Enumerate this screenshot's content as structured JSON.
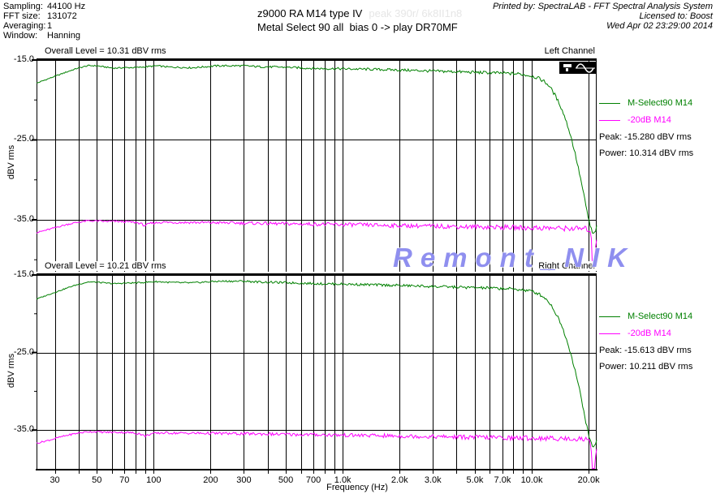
{
  "header": {
    "params": [
      {
        "label": "Sampling:",
        "value": "44100 Hz"
      },
      {
        "label": "FFT size:",
        "value": "131072"
      },
      {
        "label": "Averaging:",
        "value": "1"
      },
      {
        "label": "Window:",
        "value": "Hanning"
      }
    ],
    "title_line1": "z9000 RA M14 type IV",
    "title_ghost": "peak 390r/ 6k8II1n8",
    "title_line2": "Metal Select 90 all  bias 0 -> play DR70MF",
    "printed_by": "Printed by: SpectraLAB - FFT Spectral Analysis System",
    "licensed_to": "Licensed to: Boost",
    "printed_date": "Wed Apr 02 23:29:00 2014"
  },
  "watermark": {
    "text": "Remont_NIK",
    "color": "#8f8fef"
  },
  "colors": {
    "green": "#008000",
    "magenta": "#ff00ff",
    "grid": "#000000"
  },
  "axis": {
    "xlabel": "Frequency (Hz)",
    "scale": "log",
    "grid_freqs": [
      30,
      40,
      50,
      60,
      70,
      80,
      90,
      100,
      200,
      300,
      400,
      500,
      600,
      700,
      800,
      900,
      1000,
      2000,
      3000,
      4000,
      5000,
      6000,
      7000,
      8000,
      9000,
      10000,
      20000
    ],
    "xticks": [
      [
        30,
        "30"
      ],
      [
        50,
        "50"
      ],
      [
        70,
        "70"
      ],
      [
        100,
        "100"
      ],
      [
        200,
        "200"
      ],
      [
        300,
        "300"
      ],
      [
        500,
        "500"
      ],
      [
        700,
        "700"
      ],
      [
        1000,
        "1.0k"
      ],
      [
        2000,
        "2.0k"
      ],
      [
        3000,
        "3.0k"
      ],
      [
        5000,
        "5.0k"
      ],
      [
        7000,
        "7.0k"
      ],
      [
        10000,
        "10.0k"
      ],
      [
        20000,
        "20.0k"
      ]
    ]
  },
  "chart_data": [
    {
      "type": "line",
      "channel": "Left Channel",
      "overall_level": "Overall Level = 10.31 dBV rms",
      "ylabel": "dBV rms",
      "xscale": "log",
      "xlim": [
        24,
        22050
      ],
      "ylim": [
        -41.5,
        -15
      ],
      "yticks": [
        {
          "v": -15,
          "label": "-15.0"
        },
        {
          "v": -25,
          "label": "-25.0"
        },
        {
          "v": -35,
          "label": "-35.0"
        }
      ],
      "yticks_minor": [
        -20,
        -30,
        -40
      ],
      "hgrid": [
        -25,
        -35
      ],
      "peak": "Peak: -15.280 dBV rms",
      "power": "Power: 10.314 dBV rms",
      "series": [
        {
          "name": "M-Select90 M14",
          "color": "#008000",
          "noise": 0.18,
          "points": [
            [
              24,
              -17.9
            ],
            [
              28,
              -17.3
            ],
            [
              32,
              -16.8
            ],
            [
              36,
              -16.35
            ],
            [
              40,
              -16.0
            ],
            [
              45,
              -15.7
            ],
            [
              50,
              -15.72
            ],
            [
              56,
              -15.9
            ],
            [
              62,
              -16.02
            ],
            [
              70,
              -15.95
            ],
            [
              80,
              -15.95
            ],
            [
              90,
              -15.85
            ],
            [
              104,
              -15.72
            ],
            [
              120,
              -15.88
            ],
            [
              140,
              -15.92
            ],
            [
              160,
              -15.97
            ],
            [
              185,
              -15.85
            ],
            [
              215,
              -15.73
            ],
            [
              250,
              -15.72
            ],
            [
              300,
              -15.72
            ],
            [
              360,
              -15.83
            ],
            [
              430,
              -15.87
            ],
            [
              520,
              -15.92
            ],
            [
              630,
              -16.0
            ],
            [
              760,
              -16.07
            ],
            [
              920,
              -16.08
            ],
            [
              1100,
              -16.12
            ],
            [
              1350,
              -16.15
            ],
            [
              1650,
              -16.2
            ],
            [
              2000,
              -16.25
            ],
            [
              2500,
              -16.32
            ],
            [
              3100,
              -16.4
            ],
            [
              3800,
              -16.45
            ],
            [
              4700,
              -16.52
            ],
            [
              5800,
              -16.58
            ],
            [
              7100,
              -16.65
            ],
            [
              8700,
              -16.75
            ],
            [
              10000,
              -17.0
            ],
            [
              10800,
              -17.25
            ],
            [
              11600,
              -17.65
            ],
            [
              12400,
              -18.25
            ],
            [
              13200,
              -19.3
            ],
            [
              14100,
              -20.6
            ],
            [
              15000,
              -22.2
            ],
            [
              16000,
              -24.3
            ],
            [
              17000,
              -26.8
            ],
            [
              18000,
              -29.5
            ],
            [
              19000,
              -32.3
            ],
            [
              19800,
              -34.5
            ],
            [
              20400,
              -35.8
            ],
            [
              20900,
              -36.6
            ],
            [
              21300,
              -36.9
            ],
            [
              21600,
              -36.5
            ],
            [
              22050,
              -35.9
            ]
          ]
        },
        {
          "name": "-20dB M14",
          "color": "#ff00ff",
          "noise": 0.28,
          "points": [
            [
              24,
              -36.6
            ],
            [
              28,
              -36.2
            ],
            [
              32,
              -35.8
            ],
            [
              36,
              -35.5
            ],
            [
              40,
              -35.3
            ],
            [
              45,
              -35.12
            ],
            [
              50,
              -35.15
            ],
            [
              56,
              -35.2
            ],
            [
              64,
              -35.2
            ],
            [
              74,
              -35.25
            ],
            [
              84,
              -35.4
            ],
            [
              90,
              -35.75
            ],
            [
              96,
              -35.45
            ],
            [
              110,
              -35.3
            ],
            [
              130,
              -35.33
            ],
            [
              160,
              -35.33
            ],
            [
              200,
              -35.36
            ],
            [
              250,
              -35.38
            ],
            [
              310,
              -35.42
            ],
            [
              390,
              -35.45
            ],
            [
              480,
              -35.5
            ],
            [
              600,
              -35.52
            ],
            [
              750,
              -35.55
            ],
            [
              940,
              -35.6
            ],
            [
              1200,
              -35.62
            ],
            [
              1500,
              -35.68
            ],
            [
              1900,
              -35.72
            ],
            [
              2400,
              -35.75
            ],
            [
              3000,
              -35.8
            ],
            [
              3800,
              -35.83
            ],
            [
              4800,
              -35.88
            ],
            [
              6000,
              -35.9
            ],
            [
              7500,
              -35.95
            ],
            [
              9400,
              -36.0
            ],
            [
              11800,
              -36.02
            ],
            [
              14800,
              -36.08
            ],
            [
              18000,
              -36.1
            ],
            [
              19500,
              -36.15
            ],
            [
              20300,
              -36.3
            ],
            [
              20600,
              -36.5
            ],
            [
              20800,
              -40.9
            ],
            [
              21200,
              -41.1
            ],
            [
              21500,
              -40.3
            ],
            [
              21800,
              -37.9
            ],
            [
              22050,
              -37.4
            ]
          ]
        }
      ]
    },
    {
      "type": "line",
      "channel": "Right Channel",
      "overall_level": "Overall Level = 10.21 dBV rms",
      "ylabel": "dBV rms",
      "xlabel": "Frequency (Hz)",
      "xscale": "log",
      "xlim": [
        24,
        22050
      ],
      "ylim": [
        -40,
        -15
      ],
      "yticks": [
        {
          "v": -15,
          "label": "-15.0"
        },
        {
          "v": -25,
          "label": "-25.0"
        },
        {
          "v": -35,
          "label": "-35.0"
        }
      ],
      "yticks_minor": [
        -20,
        -30
      ],
      "hgrid": [
        -25,
        -35
      ],
      "peak": "Peak: -15.613 dBV rms",
      "power": "Power: 10.211 dBV rms",
      "series": [
        {
          "name": "M-Select90 M14",
          "color": "#008000",
          "noise": 0.18,
          "points": [
            [
              24,
              -18.1
            ],
            [
              28,
              -17.5
            ],
            [
              32,
              -17.0
            ],
            [
              36,
              -16.55
            ],
            [
              40,
              -16.2
            ],
            [
              45,
              -15.9
            ],
            [
              50,
              -15.92
            ],
            [
              56,
              -16.05
            ],
            [
              62,
              -16.12
            ],
            [
              70,
              -16.05
            ],
            [
              80,
              -16.02
            ],
            [
              90,
              -15.95
            ],
            [
              104,
              -15.85
            ],
            [
              120,
              -15.95
            ],
            [
              140,
              -16.0
            ],
            [
              160,
              -16.02
            ],
            [
              185,
              -15.92
            ],
            [
              215,
              -15.82
            ],
            [
              250,
              -15.8
            ],
            [
              300,
              -15.8
            ],
            [
              360,
              -15.9
            ],
            [
              430,
              -15.95
            ],
            [
              520,
              -16.0
            ],
            [
              630,
              -16.07
            ],
            [
              760,
              -16.13
            ],
            [
              920,
              -16.15
            ],
            [
              1100,
              -16.2
            ],
            [
              1350,
              -16.25
            ],
            [
              1650,
              -16.3
            ],
            [
              2000,
              -16.35
            ],
            [
              2500,
              -16.42
            ],
            [
              3100,
              -16.5
            ],
            [
              3800,
              -16.55
            ],
            [
              4700,
              -16.62
            ],
            [
              5800,
              -16.68
            ],
            [
              7100,
              -16.75
            ],
            [
              8700,
              -16.88
            ],
            [
              10000,
              -17.1
            ],
            [
              10800,
              -17.4
            ],
            [
              11600,
              -17.85
            ],
            [
              12400,
              -18.55
            ],
            [
              13200,
              -19.65
            ],
            [
              14100,
              -21.0
            ],
            [
              15000,
              -22.7
            ],
            [
              16000,
              -24.9
            ],
            [
              17000,
              -27.4
            ],
            [
              18000,
              -30.1
            ],
            [
              19000,
              -33.0
            ],
            [
              19800,
              -35.2
            ],
            [
              20400,
              -36.4
            ],
            [
              20900,
              -37.0
            ],
            [
              21300,
              -37.3
            ],
            [
              21600,
              -36.9
            ],
            [
              22050,
              -36.2
            ]
          ]
        },
        {
          "name": "-20dB M14",
          "color": "#ff00ff",
          "noise": 0.28,
          "points": [
            [
              24,
              -36.7
            ],
            [
              28,
              -36.3
            ],
            [
              32,
              -35.9
            ],
            [
              36,
              -35.6
            ],
            [
              40,
              -35.38
            ],
            [
              45,
              -35.2
            ],
            [
              50,
              -35.22
            ],
            [
              56,
              -35.28
            ],
            [
              64,
              -35.28
            ],
            [
              74,
              -35.32
            ],
            [
              84,
              -35.45
            ],
            [
              90,
              -35.8
            ],
            [
              96,
              -35.5
            ],
            [
              110,
              -35.36
            ],
            [
              130,
              -35.38
            ],
            [
              160,
              -35.4
            ],
            [
              200,
              -35.42
            ],
            [
              250,
              -35.45
            ],
            [
              310,
              -35.48
            ],
            [
              390,
              -35.5
            ],
            [
              480,
              -35.55
            ],
            [
              600,
              -35.58
            ],
            [
              750,
              -35.6
            ],
            [
              940,
              -35.65
            ],
            [
              1200,
              -35.68
            ],
            [
              1500,
              -35.72
            ],
            [
              1900,
              -35.76
            ],
            [
              2400,
              -35.8
            ],
            [
              3000,
              -35.84
            ],
            [
              3800,
              -35.88
            ],
            [
              4800,
              -35.92
            ],
            [
              6000,
              -35.95
            ],
            [
              7500,
              -36.0
            ],
            [
              9400,
              -36.03
            ],
            [
              11800,
              -36.06
            ],
            [
              14800,
              -36.1
            ],
            [
              18000,
              -36.14
            ],
            [
              19500,
              -36.2
            ],
            [
              20300,
              -36.35
            ],
            [
              20600,
              -36.55
            ],
            [
              20800,
              -41.0
            ],
            [
              21200,
              -41.2
            ],
            [
              21500,
              -40.4
            ],
            [
              21800,
              -38.0
            ],
            [
              22050,
              -37.5
            ]
          ]
        }
      ]
    }
  ]
}
